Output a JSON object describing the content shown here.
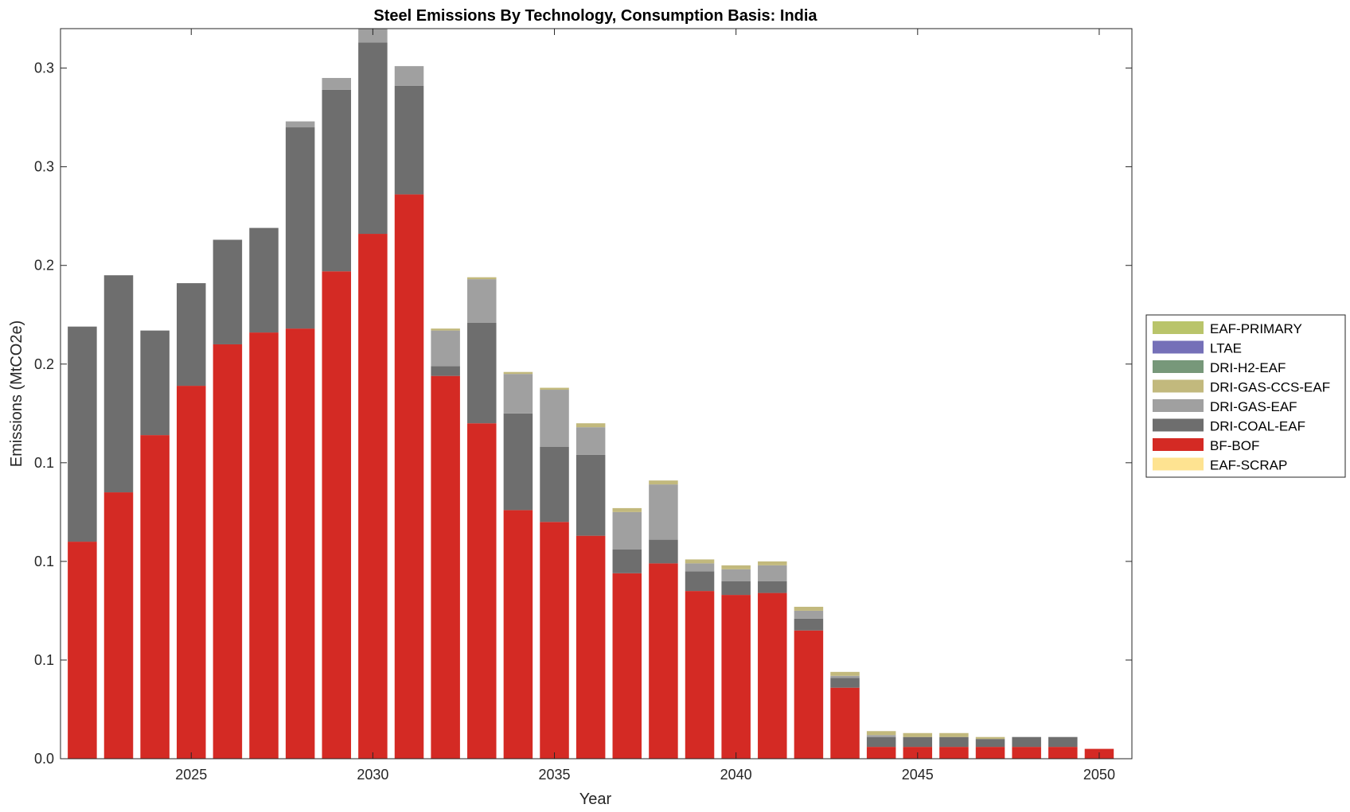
{
  "chart_data": {
    "type": "bar",
    "stacked": true,
    "title": "Steel Emissions By Technology, Consumption Basis: India",
    "xlabel": "Year",
    "ylabel": "Emissions (MtCO2e)",
    "x": [
      2022,
      2023,
      2024,
      2025,
      2026,
      2027,
      2028,
      2029,
      2030,
      2031,
      2032,
      2033,
      2034,
      2035,
      2036,
      2037,
      2038,
      2039,
      2040,
      2041,
      2042,
      2043,
      2044,
      2045,
      2046,
      2047,
      2048,
      2049,
      2050
    ],
    "xticks": [
      2025,
      2030,
      2035,
      2040,
      2045,
      2050
    ],
    "xlim": [
      2021.4,
      2050.9
    ],
    "ylim": [
      0,
      0.37
    ],
    "yticks": [
      0,
      0.05,
      0.1,
      0.15,
      0.2,
      0.25,
      0.3,
      0.35
    ],
    "ytick_labels": [
      "0.0",
      "0.1",
      "0.1",
      "0.1",
      "0.2",
      "0.2",
      "0.3",
      "0.3"
    ],
    "grid": false,
    "legend_position": "right",
    "legend": [
      "EAF-PRIMARY",
      "LTAE",
      "DRI-H2-EAF",
      "DRI-GAS-CCS-EAF",
      "DRI-GAS-EAF",
      "DRI-COAL-EAF",
      "BF-BOF",
      "EAF-SCRAP"
    ],
    "series": [
      {
        "name": "EAF-SCRAP",
        "color": "#FEE391",
        "values": [
          0,
          0,
          0,
          0,
          0,
          0,
          0,
          0,
          0,
          0,
          0,
          0,
          0,
          0,
          0,
          0,
          0,
          0,
          0,
          0,
          0,
          0,
          0,
          0,
          0,
          0,
          0,
          0,
          0
        ]
      },
      {
        "name": "BF-BOF",
        "color": "#D42A24",
        "values": [
          0.11,
          0.135,
          0.164,
          0.189,
          0.21,
          0.216,
          0.218,
          0.247,
          0.266,
          0.286,
          0.194,
          0.17,
          0.126,
          0.12,
          0.113,
          0.094,
          0.099,
          0.085,
          0.083,
          0.084,
          0.065,
          0.036,
          0.006,
          0.006,
          0.006,
          0.006,
          0.006,
          0.006,
          0.005
        ]
      },
      {
        "name": "DRI-COAL-EAF",
        "color": "#6E6E6E",
        "values": [
          0.109,
          0.11,
          0.053,
          0.052,
          0.053,
          0.053,
          0.102,
          0.092,
          0.097,
          0.055,
          0.005,
          0.051,
          0.049,
          0.038,
          0.041,
          0.012,
          0.012,
          0.01,
          0.007,
          0.006,
          0.006,
          0.005,
          0.005,
          0.005,
          0.005,
          0.004,
          0.005,
          0.005,
          0
        ]
      },
      {
        "name": "DRI-GAS-EAF",
        "color": "#A0A0A0",
        "values": [
          0,
          0,
          0,
          0,
          0,
          0,
          0.003,
          0.006,
          0.007,
          0.01,
          0.018,
          0.022,
          0.02,
          0.029,
          0.014,
          0.019,
          0.028,
          0.004,
          0.006,
          0.008,
          0.004,
          0.001,
          0.001,
          0,
          0,
          0,
          0,
          0,
          0
        ]
      },
      {
        "name": "DRI-GAS-CCS-EAF",
        "color": "#C2B97D",
        "values": [
          0,
          0,
          0,
          0,
          0,
          0,
          0,
          0,
          0,
          0,
          0.001,
          0.001,
          0.001,
          0.001,
          0.002,
          0.002,
          0.002,
          0.002,
          0.002,
          0.002,
          0.002,
          0.002,
          0.002,
          0.002,
          0.002,
          0.001,
          0,
          0,
          0
        ]
      },
      {
        "name": "DRI-H2-EAF",
        "color": "#77987A",
        "values": [
          0,
          0,
          0,
          0,
          0,
          0,
          0,
          0,
          0,
          0,
          0,
          0,
          0,
          0,
          0,
          0,
          0,
          0,
          0,
          0,
          0,
          0,
          0,
          0,
          0,
          0,
          0,
          0,
          0
        ]
      },
      {
        "name": "LTAE",
        "color": "#7570B8",
        "values": [
          0,
          0,
          0,
          0,
          0,
          0,
          0,
          0,
          0,
          0,
          0,
          0,
          0,
          0,
          0,
          0,
          0,
          0,
          0,
          0,
          0,
          0,
          0,
          0,
          0,
          0,
          0,
          0,
          0
        ]
      },
      {
        "name": "EAF-PRIMARY",
        "color": "#B9C46A",
        "values": [
          0,
          0,
          0,
          0,
          0,
          0,
          0,
          0,
          0,
          0,
          0,
          0,
          0,
          0,
          0,
          0,
          0,
          0,
          0,
          0,
          0,
          0,
          0,
          0,
          0,
          0,
          0,
          0,
          0
        ]
      }
    ]
  }
}
